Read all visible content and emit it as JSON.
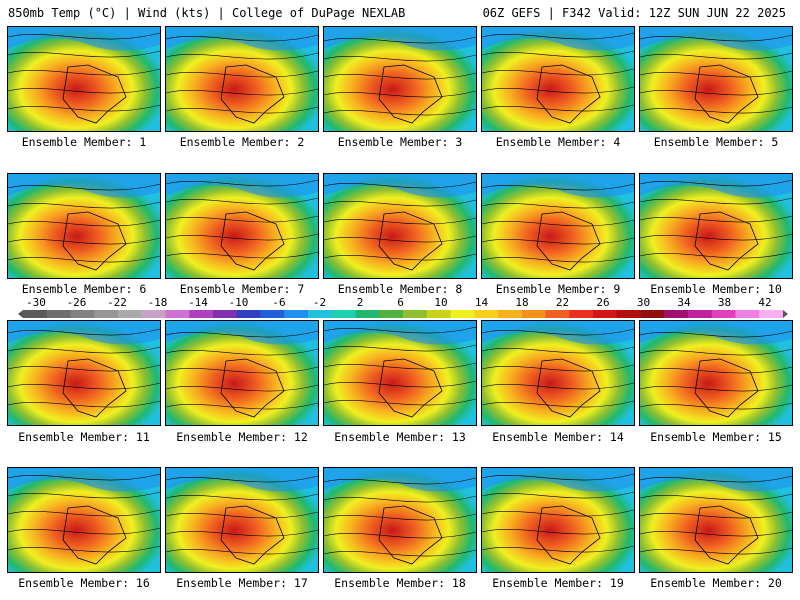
{
  "header": {
    "left": "850mb Temp (°C) | Wind (kts) | College of DuPage NEXLAB",
    "right": "06Z GEFS | F342 Valid: 12Z SUN JUN 22 2025"
  },
  "members": [
    {
      "label": "Ensemble Member: 1"
    },
    {
      "label": "Ensemble Member: 2"
    },
    {
      "label": "Ensemble Member: 3"
    },
    {
      "label": "Ensemble Member: 4"
    },
    {
      "label": "Ensemble Member: 5"
    },
    {
      "label": "Ensemble Member: 6"
    },
    {
      "label": "Ensemble Member: 7"
    },
    {
      "label": "Ensemble Member: 8"
    },
    {
      "label": "Ensemble Member: 9"
    },
    {
      "label": "Ensemble Member: 10"
    },
    {
      "label": "Ensemble Member: 11"
    },
    {
      "label": "Ensemble Member: 12"
    },
    {
      "label": "Ensemble Member: 13"
    },
    {
      "label": "Ensemble Member: 14"
    },
    {
      "label": "Ensemble Member: 15"
    },
    {
      "label": "Ensemble Member: 16"
    },
    {
      "label": "Ensemble Member: 17"
    },
    {
      "label": "Ensemble Member: 18"
    },
    {
      "label": "Ensemble Member: 19"
    },
    {
      "label": "Ensemble Member: 20"
    }
  ],
  "colorbar": {
    "ticks": [
      "-30",
      "-26",
      "-22",
      "-18",
      "-14",
      "-10",
      "-6",
      "-2",
      "2",
      "6",
      "10",
      "14",
      "18",
      "22",
      "26",
      "30",
      "34",
      "38",
      "42"
    ],
    "colors": [
      "#5a5a5a",
      "#6e6e6e",
      "#828282",
      "#969696",
      "#aaaaaa",
      "#c8a0c8",
      "#d070d0",
      "#b040c0",
      "#8030b0",
      "#3040c0",
      "#2060d8",
      "#2090f0",
      "#20c0e0",
      "#20d0b0",
      "#20b870",
      "#50b040",
      "#90c030",
      "#c8d020",
      "#f0f020",
      "#f8d020",
      "#f8b020",
      "#f89020",
      "#f06020",
      "#e83020",
      "#d01818",
      "#b01010",
      "#901010",
      "#a01070",
      "#c020a0",
      "#e040c0",
      "#f080e0",
      "#f8b0f0"
    ]
  }
}
